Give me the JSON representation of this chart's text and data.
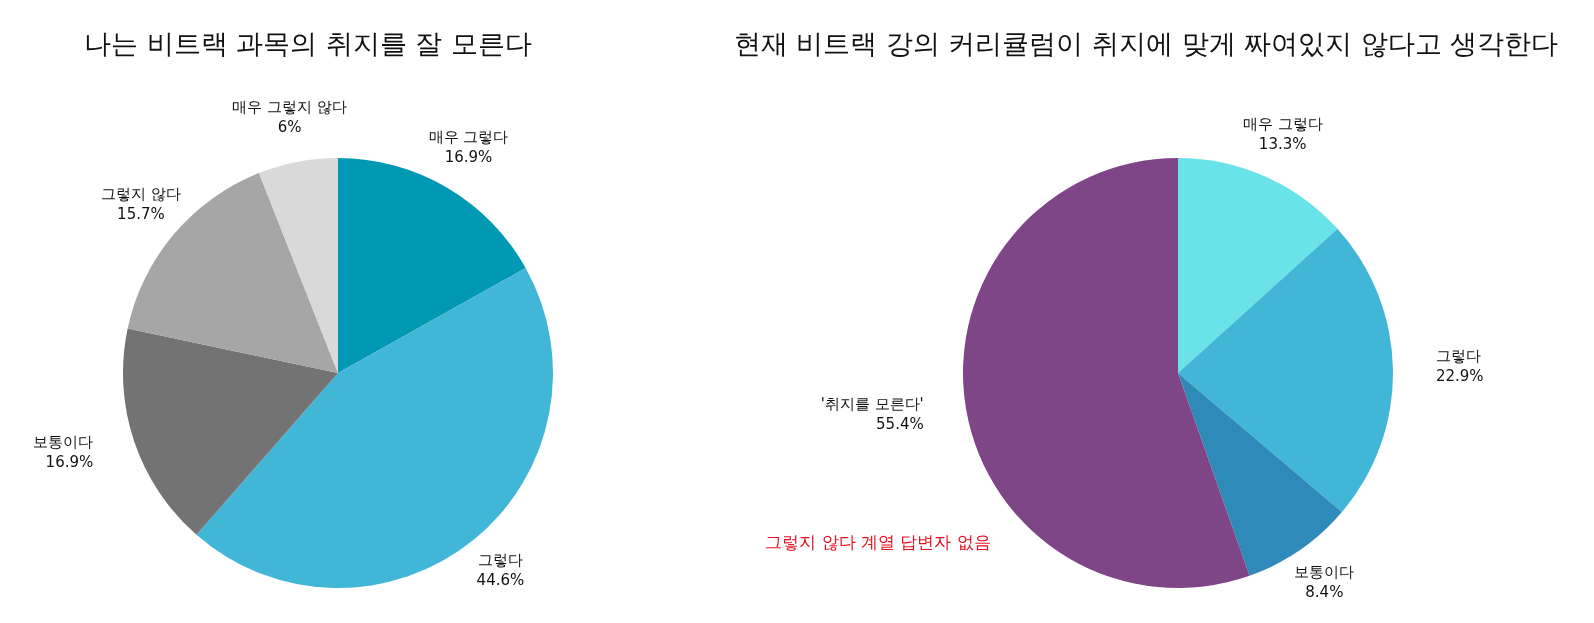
{
  "chart_data": [
    {
      "type": "pie",
      "title": "나는 비트랙 과목의 취지를 잘 모른다",
      "categories": [
        "매우 그렇다",
        "그렇다",
        "보통이다",
        "그렇지 않다",
        "매우 그렇지 않다"
      ],
      "values": [
        16.9,
        44.6,
        16.9,
        15.7,
        6
      ],
      "colors": [
        "#0098b3",
        "#41b6d6",
        "#737373",
        "#a6a6a6",
        "#d9d9d9"
      ],
      "value_labels": [
        "16.9%",
        "44.6%",
        "16.9%",
        "15.7%",
        "6%"
      ]
    },
    {
      "type": "pie",
      "title": "현재 비트랙 강의 커리큘럼이 취지에 맞게 짜여있지 않다고 생각한다",
      "categories": [
        "매우 그렇다",
        "그렇다",
        "보통이다",
        "'취지를 모른다'"
      ],
      "values": [
        13.3,
        22.9,
        8.4,
        55.4
      ],
      "colors": [
        "#69e3e8",
        "#41b6d6",
        "#2e8ab9",
        "#7e4587"
      ],
      "value_labels": [
        "13.3%",
        "22.9%",
        "8.4%",
        "55.4%"
      ],
      "annotations": [
        "그렇지 않다 계열 답변자 없음"
      ]
    }
  ]
}
